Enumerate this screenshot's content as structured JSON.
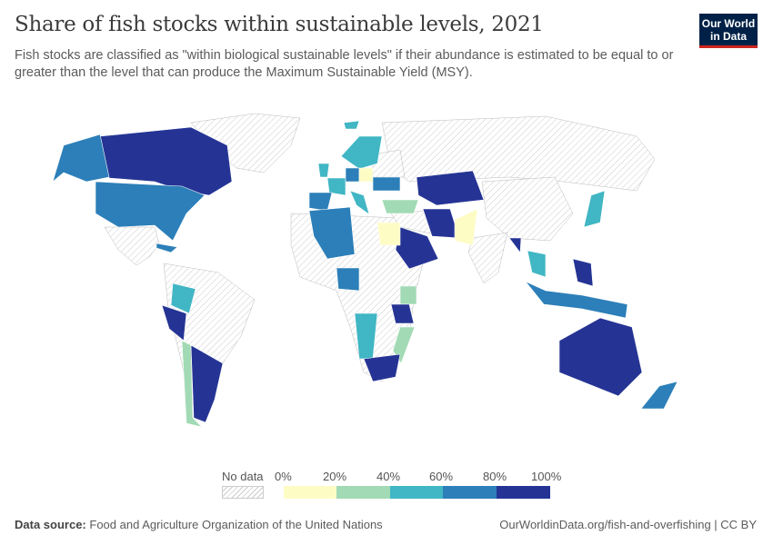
{
  "header": {
    "title": "Share of fish stocks within sustainable levels, 2021",
    "subtitle": "Fish stocks are classified as \"within biological sustainable levels\" if their abundance is estimated to be equal to or greater than the level that can produce the Maximum Sustainable Yield (MSY).",
    "logo_text": "Our World in Data"
  },
  "legend": {
    "no_data_label": "No data",
    "ticks": [
      "0%",
      "20%",
      "40%",
      "60%",
      "80%",
      "100%"
    ],
    "bins": [
      {
        "range": "0-20%",
        "color": "#fefcc5"
      },
      {
        "range": "20-40%",
        "color": "#a1dab4"
      },
      {
        "range": "40-60%",
        "color": "#41b6c4"
      },
      {
        "range": "60-80%",
        "color": "#2c7fb8"
      },
      {
        "range": "80-100%",
        "color": "#253494"
      }
    ]
  },
  "map": {
    "countries": [
      {
        "name": "Canada",
        "bin": 4
      },
      {
        "name": "United States",
        "bin": 3
      },
      {
        "name": "Peru",
        "bin": 4
      },
      {
        "name": "Argentina",
        "bin": 4
      },
      {
        "name": "Chile",
        "bin": 1
      },
      {
        "name": "Colombia",
        "bin": 2
      },
      {
        "name": "Cuba",
        "bin": 3
      },
      {
        "name": "Norway",
        "bin": 2
      },
      {
        "name": "Iceland",
        "bin": 2
      },
      {
        "name": "United Kingdom",
        "bin": 2
      },
      {
        "name": "France",
        "bin": 2
      },
      {
        "name": "Spain",
        "bin": 3
      },
      {
        "name": "Germany",
        "bin": 3
      },
      {
        "name": "Poland",
        "bin": 0
      },
      {
        "name": "Ukraine",
        "bin": 3
      },
      {
        "name": "Italy",
        "bin": 2
      },
      {
        "name": "Turkey",
        "bin": 1
      },
      {
        "name": "Kazakhstan",
        "bin": 4
      },
      {
        "name": "Iran",
        "bin": 4
      },
      {
        "name": "Saudi Arabia",
        "bin": 4
      },
      {
        "name": "Pakistan",
        "bin": 0
      },
      {
        "name": "Egypt",
        "bin": 0
      },
      {
        "name": "Algeria",
        "bin": 3
      },
      {
        "name": "Nigeria",
        "bin": 3
      },
      {
        "name": "Kenya",
        "bin": 1
      },
      {
        "name": "Tanzania",
        "bin": 4
      },
      {
        "name": "Namibia",
        "bin": 2
      },
      {
        "name": "Mozambique",
        "bin": 1
      },
      {
        "name": "South Africa",
        "bin": 4
      },
      {
        "name": "Myanmar",
        "bin": 4
      },
      {
        "name": "Thailand",
        "bin": 2
      },
      {
        "name": "Philippines",
        "bin": 4
      },
      {
        "name": "Indonesia",
        "bin": 3
      },
      {
        "name": "Japan",
        "bin": 2
      },
      {
        "name": "Australia",
        "bin": 4
      },
      {
        "name": "New Zealand",
        "bin": 3
      }
    ]
  },
  "footer": {
    "source_label": "Data source:",
    "source": "Food and Agriculture Organization of the United Nations",
    "url": "OurWorldinData.org/fish-and-overfishing | CC BY"
  }
}
